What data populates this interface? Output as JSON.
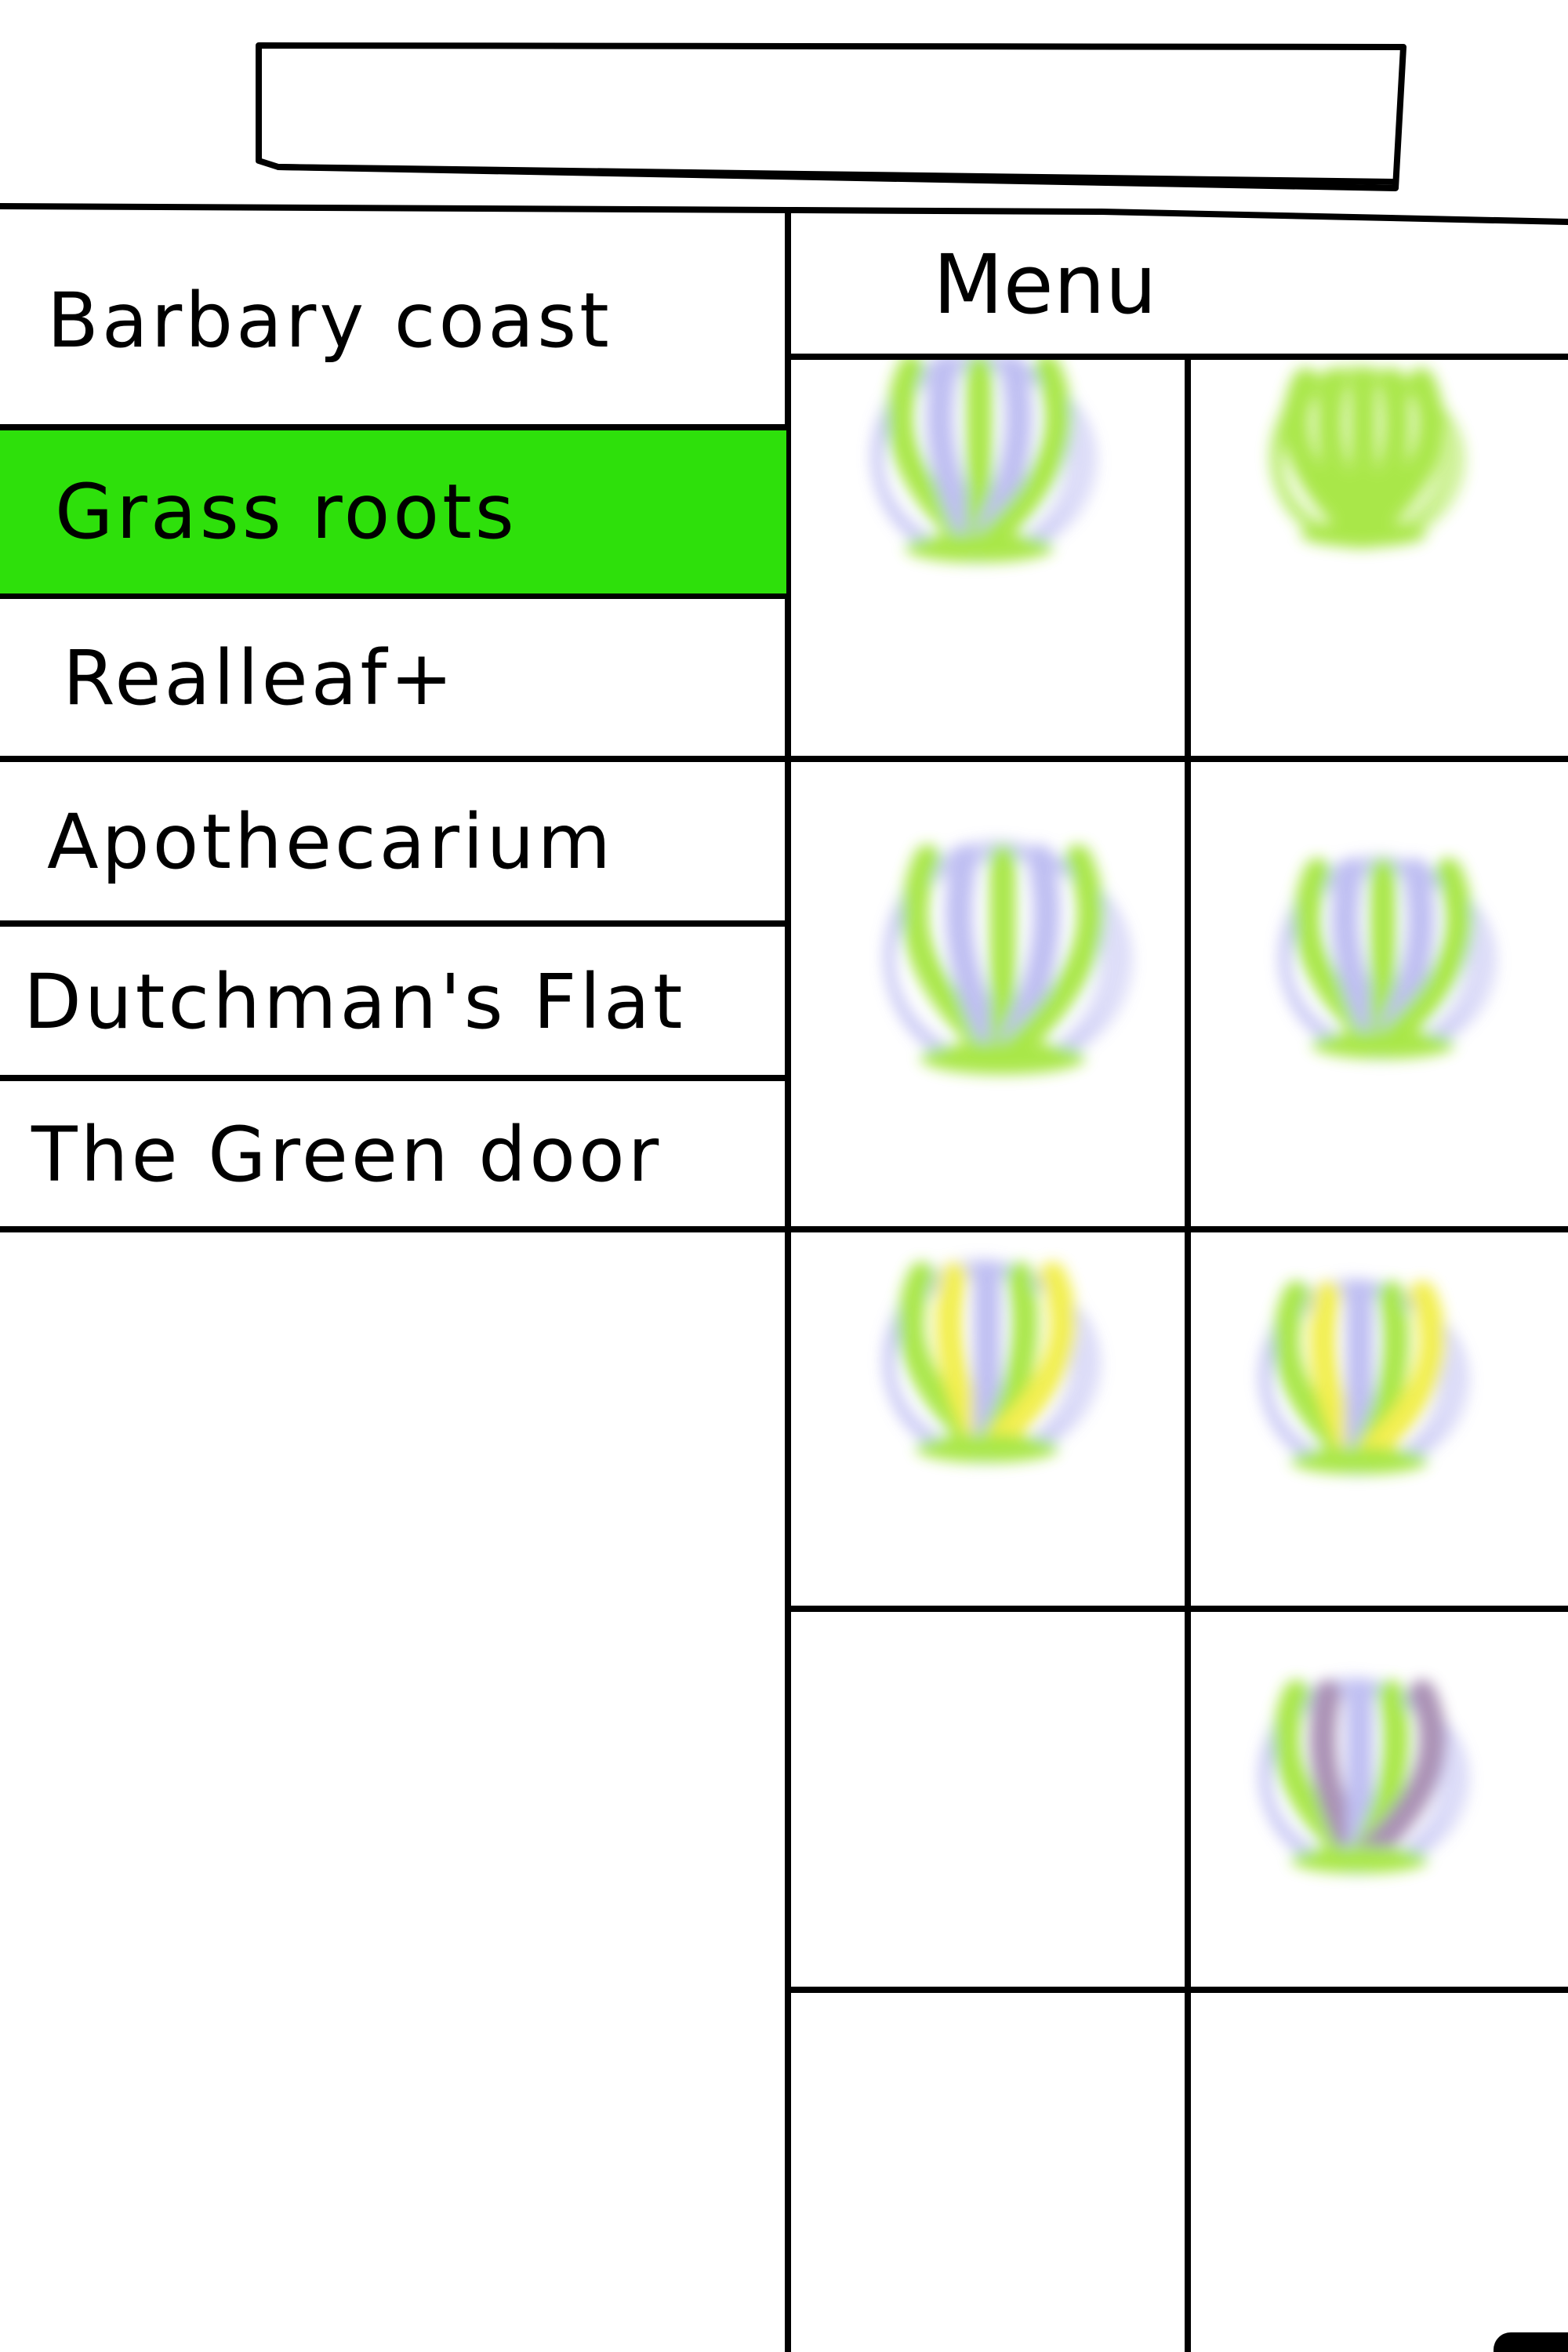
{
  "colors": {
    "accent": "#2ee00b",
    "ink": "#000000",
    "plant_green": "#9be32b",
    "plant_lavender": "#b4b4f0",
    "plant_yellow": "#f0ec33",
    "plant_purple": "#9c7fa8"
  },
  "search": {
    "value": ""
  },
  "stores": {
    "items": [
      {
        "label": "Barbary coast",
        "selected": false
      },
      {
        "label": "Grass roots",
        "selected": true
      },
      {
        "label": "Realleaf+",
        "selected": false
      },
      {
        "label": "Apothecarium",
        "selected": false
      },
      {
        "label": "Dutchman's Flat",
        "selected": false
      },
      {
        "label": "The Green door",
        "selected": false
      }
    ]
  },
  "menu": {
    "title": "Menu",
    "cells": [
      {
        "icon": "flower-bud-icon",
        "tone": "green-lavender"
      },
      {
        "icon": "flower-bud-icon",
        "tone": "green"
      },
      {
        "icon": "flower-bud-icon",
        "tone": "green-lavender"
      },
      {
        "icon": "flower-bud-icon",
        "tone": "green-lavender"
      },
      {
        "icon": "flower-bud-icon",
        "tone": "yellow-green"
      },
      {
        "icon": "flower-bud-icon",
        "tone": "yellow-green"
      },
      {
        "icon": "",
        "tone": "empty"
      },
      {
        "icon": "flower-bud-icon",
        "tone": "green-purple"
      },
      {
        "icon": "",
        "tone": "empty"
      },
      {
        "icon": "",
        "tone": "empty"
      }
    ]
  }
}
